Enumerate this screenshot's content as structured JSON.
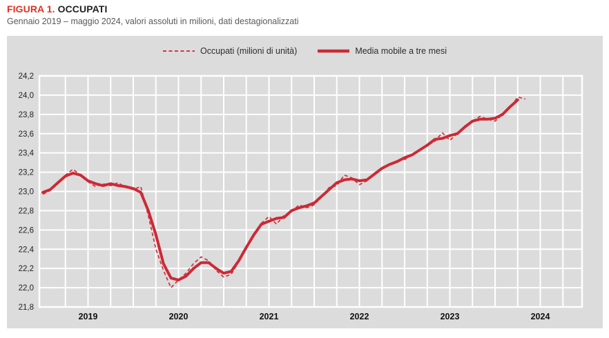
{
  "header": {
    "figure_label": "FIGURA 1.",
    "figure_title": "OCCUPATI",
    "subtitle": "Gennaio 2019 – maggio 2024, valori assoluti in milioni, dati destagionalizzati"
  },
  "legend": {
    "occupati": "Occupati (milioni di unità)",
    "media_mobile": "Media mobile a tre mesi"
  },
  "colors": {
    "title_accent": "#e33122",
    "line_occupati_dashed": "#d2353f",
    "line_media_mobile_solid": "#cc2936",
    "chart_background": "#dcdcdc",
    "gridline": "#ffffff",
    "axis_text": "#1f1f1f",
    "subtitle_text": "#57585a"
  },
  "chart_data": {
    "type": "line",
    "title": "FIGURA 1. OCCUPATI",
    "subtitle": "Gennaio 2019 – maggio 2024, valori assoluti in milioni, dati destagionalizzati",
    "x_unit": "month",
    "x_start": "2019-01",
    "x_end": "2024-05",
    "x_tick_labels": [
      "2019",
      "2020",
      "2021",
      "2022",
      "2023",
      "2024"
    ],
    "y_tick_labels_top_to_bottom": [
      "24,2",
      "24,0",
      "23,8",
      "23,6",
      "23,4",
      "23,2",
      "23,0",
      "22,8",
      "22,6",
      "22,4",
      "22,2",
      "22,0",
      "21,8"
    ],
    "ylim": [
      21.8,
      24.2
    ],
    "y_step": 0.2,
    "grid": true,
    "gridline_x_interval_months": 3,
    "legend_position": "top-center",
    "series": [
      {
        "name": "Occupati (milioni di unità)",
        "style": "dashed",
        "values": [
          22.97,
          23.01,
          23.08,
          23.17,
          23.23,
          23.17,
          23.1,
          23.05,
          23.08,
          23.06,
          23.09,
          23.04,
          23.02,
          23.05,
          22.75,
          22.4,
          22.18,
          22.0,
          22.08,
          22.15,
          22.25,
          22.32,
          22.28,
          22.18,
          22.11,
          22.14,
          22.27,
          22.43,
          22.56,
          22.67,
          22.74,
          22.66,
          22.75,
          22.79,
          22.86,
          22.83,
          22.86,
          22.95,
          23.04,
          23.06,
          23.17,
          23.14,
          23.07,
          23.11,
          23.19,
          23.25,
          23.28,
          23.32,
          23.33,
          23.39,
          23.43,
          23.48,
          23.52,
          23.61,
          23.53,
          23.6,
          23.68,
          23.73,
          23.78,
          23.75,
          23.73,
          23.8,
          23.87,
          23.98,
          23.96
        ]
      },
      {
        "name": "Media mobile a tre mesi",
        "style": "solid-thick",
        "values": [
          22.99,
          23.02,
          23.09,
          23.16,
          23.19,
          23.17,
          23.11,
          23.08,
          23.06,
          23.08,
          23.06,
          23.05,
          23.03,
          22.99,
          22.8,
          22.55,
          22.25,
          22.1,
          22.08,
          22.12,
          22.2,
          22.26,
          22.26,
          22.2,
          22.15,
          22.17,
          22.28,
          22.42,
          22.55,
          22.66,
          22.69,
          22.72,
          22.73,
          22.8,
          22.83,
          22.85,
          22.88,
          22.95,
          23.02,
          23.09,
          23.12,
          23.13,
          23.11,
          23.12,
          23.18,
          23.24,
          23.28,
          23.31,
          23.35,
          23.38,
          23.43,
          23.48,
          23.54,
          23.55,
          23.58,
          23.6,
          23.67,
          23.73,
          23.75,
          23.75,
          23.76,
          23.8,
          23.88,
          23.95
        ]
      }
    ]
  }
}
